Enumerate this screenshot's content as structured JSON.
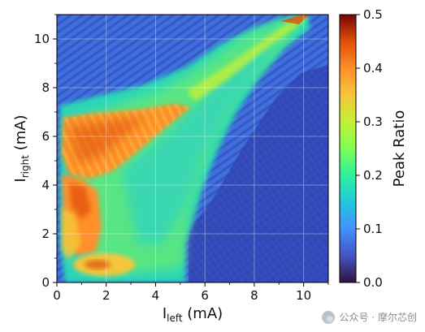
{
  "chart_data": {
    "type": "heatmap",
    "x": {
      "var": "I",
      "sub": "left",
      "unit": " (mA)",
      "lim": [
        0,
        11
      ],
      "ticks": [
        "0",
        "2",
        "4",
        "6",
        "8",
        "10"
      ]
    },
    "y": {
      "var": "I",
      "sub": "right",
      "unit": " (mA)",
      "lim": [
        0,
        11
      ],
      "ticks": [
        "0",
        "2",
        "4",
        "6",
        "8",
        "10"
      ]
    },
    "colorbar": {
      "label": "Peak Ratio",
      "lim": [
        0,
        0.5
      ],
      "ticks": [
        "0.0",
        "0.1",
        "0.2",
        "0.3",
        "0.4",
        "0.5"
      ],
      "colormap": "turbo"
    },
    "grid": true,
    "regions": [
      {
        "name": "background",
        "value": 0.06
      },
      {
        "name": "wedge-body",
        "value": 0.2
      },
      {
        "name": "upper-left-lobe",
        "value": 0.4
      },
      {
        "name": "left-edge-band",
        "value": 0.42
      },
      {
        "name": "bottom-hotspot",
        "value": 0.38
      },
      {
        "name": "apex",
        "value": 0.48
      }
    ]
  },
  "watermark": {
    "text": "公众号 · 摩尔芯创"
  }
}
